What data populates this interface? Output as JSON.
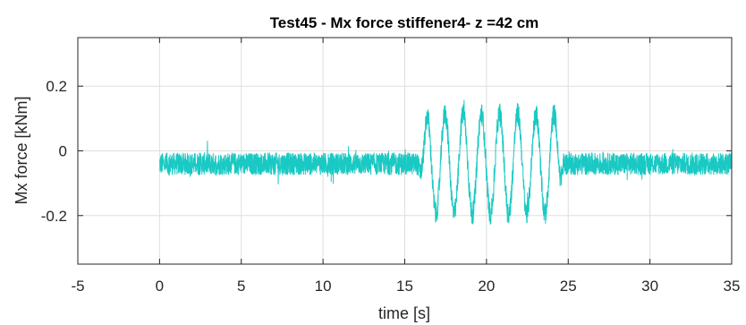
{
  "chart_data": {
    "type": "line",
    "title": "Test45 - Mx force stiffener4- z =42 cm",
    "xlabel": "time [s]",
    "ylabel": "Mx force [kNm]",
    "xlim": [
      -5,
      35
    ],
    "ylim": [
      -0.35,
      0.35
    ],
    "xticks": [
      -5,
      0,
      5,
      10,
      15,
      20,
      25,
      30,
      35
    ],
    "xtick_labels": [
      "-5",
      "0",
      "5",
      "10",
      "15",
      "20",
      "25",
      "30",
      "35"
    ],
    "yticks": [
      -0.2,
      0,
      0.2
    ],
    "ytick_labels": [
      "-0.2",
      "0",
      "0.2"
    ],
    "grid": true,
    "series": [
      {
        "color": "#1ac9c3",
        "x_start": 0,
        "x_end": 35,
        "baseline": -0.04,
        "noise_amplitude": 0.045,
        "oscillation": {
          "start": 15.8,
          "end": 24.7,
          "frequency_hz": 0.9,
          "amplitude": 0.155
        }
      }
    ]
  }
}
